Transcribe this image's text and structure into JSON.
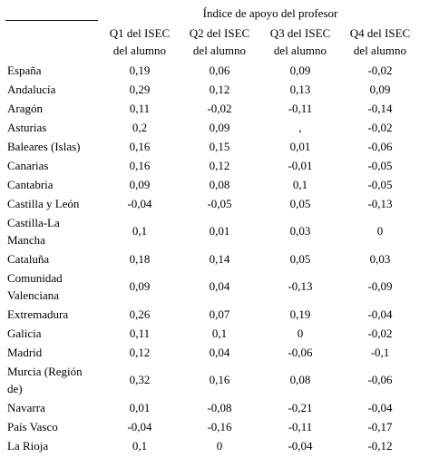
{
  "table": {
    "group_header": "Índice de apoyo del profesor",
    "columns": [
      {
        "line1": "Q1 del ISEC",
        "line2": "del alumno"
      },
      {
        "line1": "Q2 del ISEC",
        "line2": "del alumno"
      },
      {
        "line1": "Q3 del ISEC",
        "line2": "del alumno"
      },
      {
        "line1": "Q4 del ISEC",
        "line2": "del alumno"
      }
    ],
    "rows": [
      {
        "region": "España",
        "values": [
          "0,19",
          "0,06",
          "0,09",
          "-0,02"
        ]
      },
      {
        "region": "Andalucía",
        "values": [
          "0,29",
          "0,12",
          "0,13",
          "0,09"
        ]
      },
      {
        "region": "Aragón",
        "values": [
          "0,11",
          "-0,02",
          "-0,11",
          "-0,14"
        ]
      },
      {
        "region": "Asturias",
        "values": [
          "0,2",
          "0,09",
          ",",
          "-0,02"
        ]
      },
      {
        "region": "Baleares (Islas)",
        "values": [
          "0,16",
          "0,15",
          "0,01",
          "-0,06"
        ]
      },
      {
        "region": "Canarias",
        "values": [
          "0,16",
          "0,12",
          "-0,01",
          "-0,05"
        ]
      },
      {
        "region": "Cantabria",
        "values": [
          "0,09",
          "0,08",
          "0,1",
          "-0,05"
        ]
      },
      {
        "region": "Castilla y León",
        "values": [
          "-0,04",
          "-0,05",
          "0,05",
          "-0,13"
        ]
      },
      {
        "region": "Castilla-La Mancha",
        "values": [
          "0,1",
          "0,01",
          "0,03",
          "0"
        ]
      },
      {
        "region": "Cataluña",
        "values": [
          "0,18",
          "0,14",
          "0,05",
          "0,03"
        ]
      },
      {
        "region": "Comunidad Valenciana",
        "values": [
          "0,09",
          "0,04",
          "-0,13",
          "-0,09"
        ]
      },
      {
        "region": "Extremadura",
        "values": [
          "0,26",
          "0,07",
          "0,19",
          "-0,04"
        ]
      },
      {
        "region": "Galicia",
        "values": [
          "0,11",
          "0,1",
          "0",
          "-0,02"
        ]
      },
      {
        "region": "Madrid",
        "values": [
          "0,12",
          "0,04",
          "-0,06",
          "-0,1"
        ]
      },
      {
        "region": "Murcia (Región de)",
        "values": [
          "0,32",
          "0,16",
          "0,08",
          "-0,06"
        ]
      },
      {
        "region": "Navarra",
        "values": [
          "0,01",
          "-0,08",
          "-0,21",
          "-0,04"
        ]
      },
      {
        "region": "País Vasco",
        "values": [
          "-0,04",
          "-0,16",
          "-0,11",
          "-0,17"
        ]
      },
      {
        "region": "La Rioja",
        "values": [
          "0,1",
          "0",
          "-0,04",
          "-0,12"
        ]
      }
    ]
  }
}
